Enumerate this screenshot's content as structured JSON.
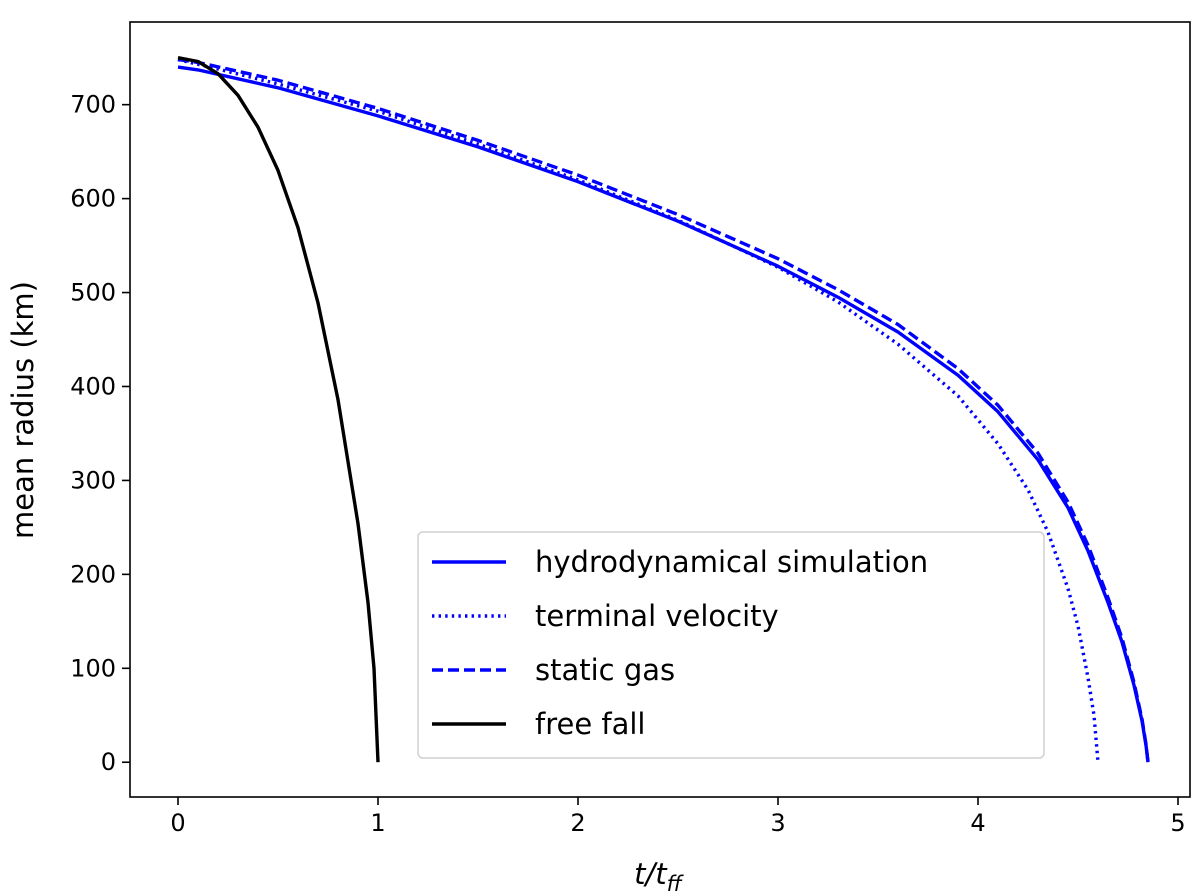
{
  "chart_data": {
    "type": "line",
    "xlabel": "t/t",
    "xlabel_subscript": "ff",
    "ylabel": "mean radius (km)",
    "xlim": [
      -0.24,
      5.06
    ],
    "ylim": [
      -37,
      788
    ],
    "x_ticks": [
      0,
      1,
      2,
      3,
      4,
      5
    ],
    "y_ticks": [
      0,
      100,
      200,
      300,
      400,
      500,
      600,
      700
    ],
    "grid": false,
    "legend_position": "lower-right",
    "colors": {
      "blue": "#0000ff",
      "black": "#000000"
    },
    "series": [
      {
        "name": "hydrodynamical simulation",
        "style": "solid",
        "color": "#0000ff",
        "x": [
          0,
          0.1,
          0.5,
          1.0,
          1.5,
          2.0,
          2.5,
          3.0,
          3.3,
          3.6,
          3.9,
          4.1,
          4.3,
          4.45,
          4.55,
          4.65,
          4.72,
          4.78,
          4.82,
          4.84,
          4.85
        ],
        "y": [
          740,
          737,
          718,
          688,
          655,
          618,
          576,
          528,
          495,
          458,
          412,
          373,
          322,
          271,
          225,
          170,
          128,
          82,
          44,
          18,
          0
        ]
      },
      {
        "name": "terminal velocity",
        "style": "dotted",
        "color": "#0000ff",
        "x": [
          0,
          0.2,
          0.5,
          1.0,
          1.5,
          2.0,
          2.5,
          3.0,
          3.3,
          3.6,
          3.9,
          4.1,
          4.25,
          4.35,
          4.45,
          4.5,
          4.55,
          4.58,
          4.6
        ],
        "y": [
          748,
          738,
          722,
          693,
          658,
          620,
          577,
          527,
          490,
          445,
          390,
          339,
          290,
          245,
          185,
          145,
          90,
          50,
          0
        ]
      },
      {
        "name": "static gas",
        "style": "dashed",
        "color": "#0000ff",
        "x": [
          0,
          0.1,
          0.5,
          1.0,
          1.5,
          2.0,
          2.5,
          3.0,
          3.3,
          3.6,
          3.9,
          4.1,
          4.3,
          4.45,
          4.55,
          4.65,
          4.72,
          4.78,
          4.82,
          4.84,
          4.85
        ],
        "y": [
          748,
          745,
          726,
          696,
          662,
          625,
          583,
          536,
          503,
          466,
          419,
          380,
          329,
          277,
          231,
          175,
          132,
          85,
          46,
          19,
          0
        ]
      },
      {
        "name": "free fall",
        "style": "solid",
        "color": "#000000",
        "x": [
          0,
          0.1,
          0.2,
          0.3,
          0.4,
          0.5,
          0.6,
          0.7,
          0.8,
          0.9,
          0.95,
          0.98,
          1.0
        ],
        "y": [
          750,
          746,
          733,
          710,
          676,
          630,
          569,
          489,
          386,
          254,
          170,
          100,
          0
        ]
      }
    ]
  }
}
